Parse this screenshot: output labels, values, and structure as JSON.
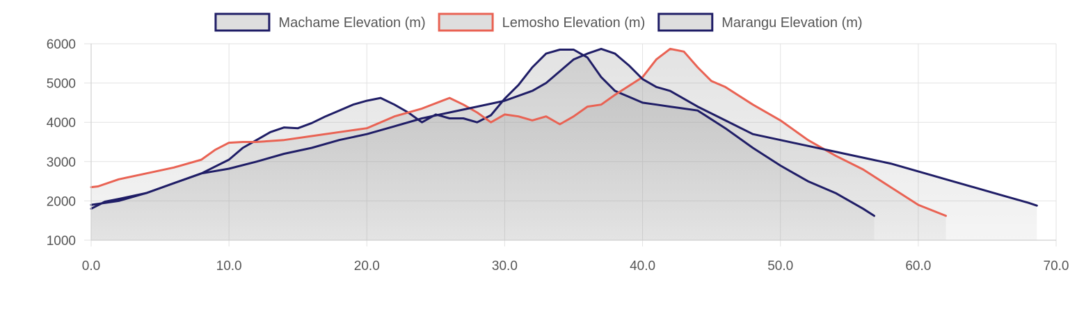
{
  "chart_data": {
    "type": "area",
    "xlim": [
      0,
      70
    ],
    "ylim": [
      1000,
      6000
    ],
    "xticks": [
      "0.0",
      "10.0",
      "20.0",
      "30.0",
      "40.0",
      "50.0",
      "60.0",
      "70.0"
    ],
    "yticks": [
      "1000",
      "2000",
      "3000",
      "4000",
      "5000",
      "6000"
    ],
    "grid": true,
    "legend_position": "top",
    "series": [
      {
        "name": "Machame Elevation (m)",
        "color": "#1f1d66",
        "x": [
          0,
          1,
          2,
          4,
          6,
          8,
          10,
          11,
          12,
          13,
          14,
          15,
          16,
          17,
          18,
          19,
          20,
          21,
          22,
          23,
          24,
          25,
          26,
          27,
          28,
          29,
          30,
          31,
          32,
          33,
          34,
          35,
          36,
          37,
          38,
          39,
          40,
          41,
          42,
          43,
          44,
          46,
          48,
          50,
          52,
          54,
          56,
          56.8
        ],
        "values": [
          1800,
          1980,
          2050,
          2200,
          2450,
          2700,
          3050,
          3350,
          3550,
          3750,
          3870,
          3850,
          3980,
          4150,
          4300,
          4450,
          4550,
          4620,
          4450,
          4250,
          4000,
          4200,
          4100,
          4100,
          4000,
          4180,
          4600,
          4950,
          5400,
          5750,
          5850,
          5850,
          5650,
          5150,
          4800,
          4650,
          4500,
          4450,
          4400,
          4350,
          4300,
          3850,
          3350,
          2900,
          2500,
          2200,
          1800,
          1620
        ]
      },
      {
        "name": "Lemosho Elevation (m)",
        "color": "#e96253",
        "x": [
          0,
          0.5,
          2,
          4,
          6,
          8,
          9,
          10,
          11,
          12,
          14,
          16,
          18,
          20,
          22,
          24,
          26,
          27,
          28,
          29,
          30,
          31,
          32,
          33,
          34,
          35,
          36,
          37,
          38,
          40,
          41,
          42,
          43,
          44,
          45,
          46,
          48,
          50,
          52,
          54,
          56,
          58,
          60,
          62
        ],
        "values": [
          2350,
          2370,
          2550,
          2700,
          2850,
          3050,
          3300,
          3480,
          3500,
          3500,
          3550,
          3650,
          3750,
          3850,
          4150,
          4350,
          4620,
          4450,
          4250,
          4000,
          4200,
          4150,
          4050,
          4150,
          3950,
          4150,
          4400,
          4450,
          4700,
          5150,
          5600,
          5870,
          5800,
          5400,
          5050,
          4900,
          4450,
          4050,
          3550,
          3150,
          2800,
          2350,
          1900,
          1620
        ]
      },
      {
        "name": "Marangu Elevation (m)",
        "color": "#1f1d66",
        "x": [
          0,
          2,
          4,
          6,
          8,
          10,
          12,
          14,
          16,
          18,
          20,
          22,
          24,
          26,
          28,
          30,
          32,
          33,
          34,
          35,
          36,
          37,
          38,
          39,
          40,
          41,
          42,
          44,
          46,
          48,
          50,
          52,
          54,
          56,
          58,
          60,
          62,
          64,
          66,
          68,
          68.6
        ],
        "values": [
          1900,
          2000,
          2200,
          2450,
          2700,
          2820,
          3000,
          3200,
          3350,
          3550,
          3700,
          3900,
          4100,
          4250,
          4400,
          4550,
          4800,
          5000,
          5300,
          5600,
          5750,
          5870,
          5750,
          5450,
          5100,
          4900,
          4800,
          4400,
          4050,
          3700,
          3550,
          3400,
          3250,
          3100,
          2950,
          2750,
          2550,
          2350,
          2150,
          1950,
          1880
        ]
      }
    ]
  }
}
